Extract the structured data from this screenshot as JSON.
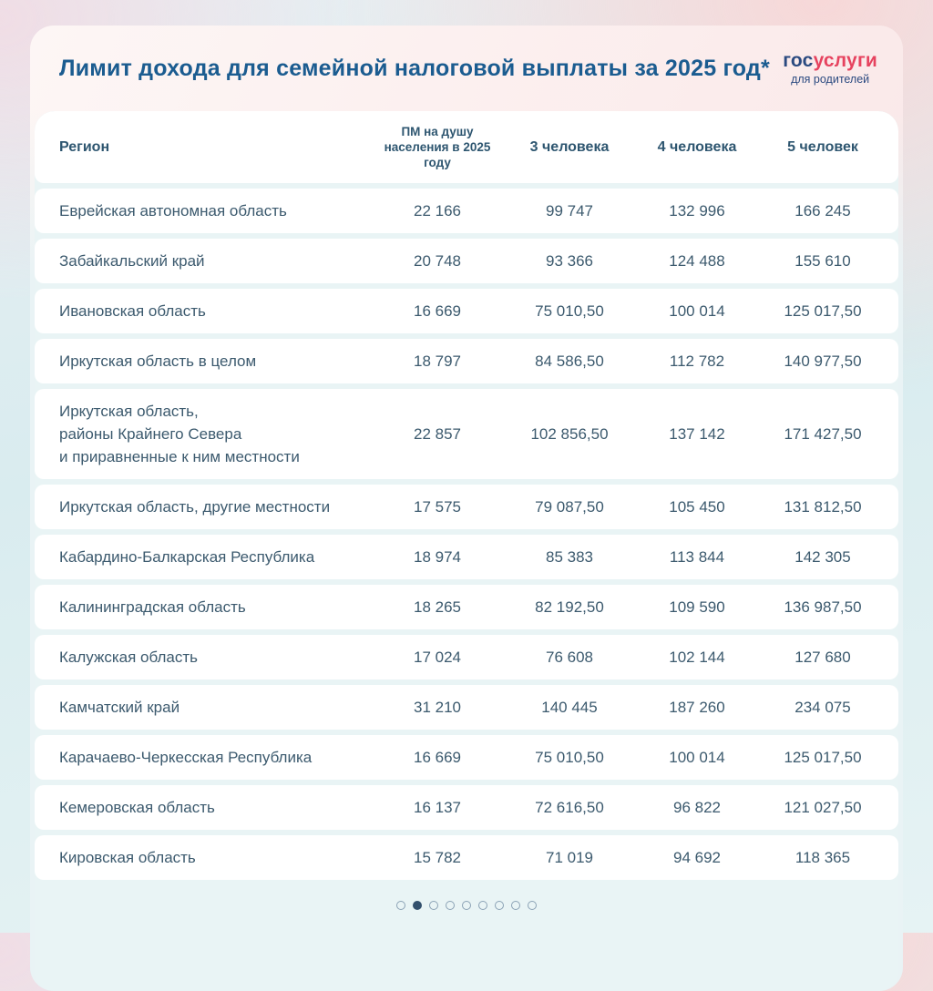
{
  "header": {
    "title": "Лимит дохода для семейной налоговой выплаты за 2025 год*",
    "logo": {
      "blue_part": "гос",
      "red_part": "услуги",
      "subtitle": "для родителей"
    }
  },
  "table": {
    "columns": {
      "region": "Регион",
      "pm_line1": "ПМ на душу",
      "pm_line2": "населения в 2025 году",
      "p3": "3 человека",
      "p4": "4 человека",
      "p5": "5 человек"
    },
    "rows": [
      {
        "region": "Еврейская автономная область",
        "pm": "22 166",
        "p3": "99 747",
        "p4": "132 996",
        "p5": "166 245"
      },
      {
        "region": "Забайкальский край",
        "pm": "20 748",
        "p3": "93 366",
        "p4": "124 488",
        "p5": "155 610"
      },
      {
        "region": "Ивановская область",
        "pm": "16 669",
        "p3": "75 010,50",
        "p4": "100 014",
        "p5": "125 017,50"
      },
      {
        "region": "Иркутская область в целом",
        "pm": "18 797",
        "p3": "84 586,50",
        "p4": "112 782",
        "p5": "140 977,50"
      },
      {
        "region": "Иркутская область,\nрайоны Крайнего Севера\nи приравненные к ним местности",
        "pm": "22 857",
        "p3": "102 856,50",
        "p4": "137 142",
        "p5": "171 427,50"
      },
      {
        "region": "Иркутская область, другие местности",
        "pm": "17 575",
        "p3": "79 087,50",
        "p4": "105 450",
        "p5": "131 812,50"
      },
      {
        "region": "Кабардино-Балкарская Республика",
        "pm": "18 974",
        "p3": "85 383",
        "p4": "113 844",
        "p5": "142 305"
      },
      {
        "region": "Калининградская область",
        "pm": "18 265",
        "p3": "82 192,50",
        "p4": "109 590",
        "p5": "136 987,50"
      },
      {
        "region": "Калужская область",
        "pm": "17 024",
        "p3": "76 608",
        "p4": "102 144",
        "p5": "127 680"
      },
      {
        "region": "Камчатский край",
        "pm": "31 210",
        "p3": "140 445",
        "p4": "187 260",
        "p5": "234 075"
      },
      {
        "region": "Карачаево-Черкесская Республика",
        "pm": "16 669",
        "p3": "75 010,50",
        "p4": "100 014",
        "p5": "125 017,50"
      },
      {
        "region": "Кемеровская область",
        "pm": "16 137",
        "p3": "72 616,50",
        "p4": "96 822",
        "p5": "121 027,50"
      },
      {
        "region": "Кировская область",
        "pm": "15 782",
        "p3": "71 019",
        "p4": "94 692",
        "p5": "118 365"
      }
    ]
  },
  "pagination": {
    "total": 9,
    "active_index": 1
  },
  "colors": {
    "title_blue": "#1b5c90",
    "logo_blue": "#2b4a80",
    "logo_red": "#e6435f",
    "body_text": "#3c5a6e",
    "table_bg": "#e9f4f5",
    "row_bg": "#ffffff",
    "dot_active": "#33506d",
    "dot_border": "#8ba2b5"
  }
}
